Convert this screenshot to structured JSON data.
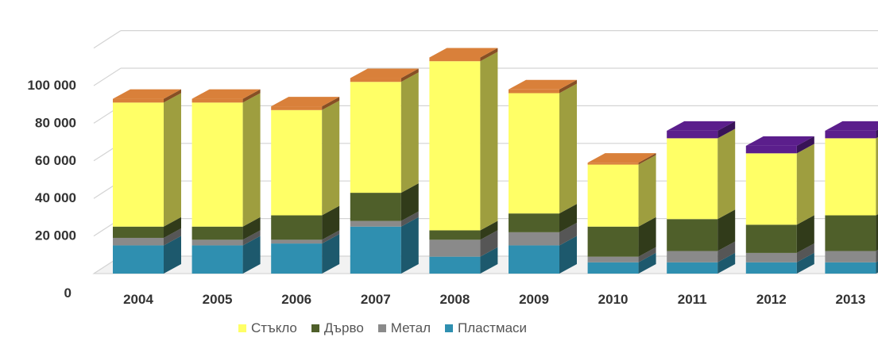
{
  "chart_data": {
    "type": "bar",
    "stacked": true,
    "three_d": true,
    "categories": [
      "2004",
      "2005",
      "2006",
      "2007",
      "2008",
      "2009",
      "2010",
      "2011",
      "2012",
      "2013"
    ],
    "series": [
      {
        "name": "Пластмаси",
        "color": "#2f8fb0",
        "values": [
          15000,
          15000,
          16000,
          25000,
          9000,
          15000,
          6000,
          6000,
          6000,
          6000
        ]
      },
      {
        "name": "Метал",
        "color": "#8a8a8a",
        "values": [
          4000,
          3000,
          2000,
          3000,
          9000,
          7000,
          3000,
          6000,
          5000,
          6000
        ]
      },
      {
        "name": "Дърво",
        "color": "#4f5f2a",
        "values": [
          6000,
          7000,
          13000,
          15000,
          5000,
          10000,
          16000,
          17000,
          15000,
          19000
        ]
      },
      {
        "name": "Стъкло",
        "color": "#ffff66",
        "values": [
          66000,
          66000,
          56000,
          59000,
          90000,
          64000,
          33000,
          43000,
          38000,
          41000
        ]
      },
      {
        "name": "",
        "color": "#d9803a",
        "values": [
          2000,
          2000,
          2000,
          2000,
          2000,
          2000,
          1000,
          0,
          0,
          0
        ]
      },
      {
        "name": "",
        "color": "#5b1e8c",
        "values": [
          0,
          0,
          0,
          0,
          0,
          0,
          0,
          4000,
          4000,
          4000
        ]
      }
    ],
    "yticks": [
      "0",
      "20 000",
      "40 000",
      "60 000",
      "80 000",
      "100 000"
    ],
    "ylim": [
      0,
      120000
    ],
    "grid": true,
    "legend_position": "bottom"
  }
}
